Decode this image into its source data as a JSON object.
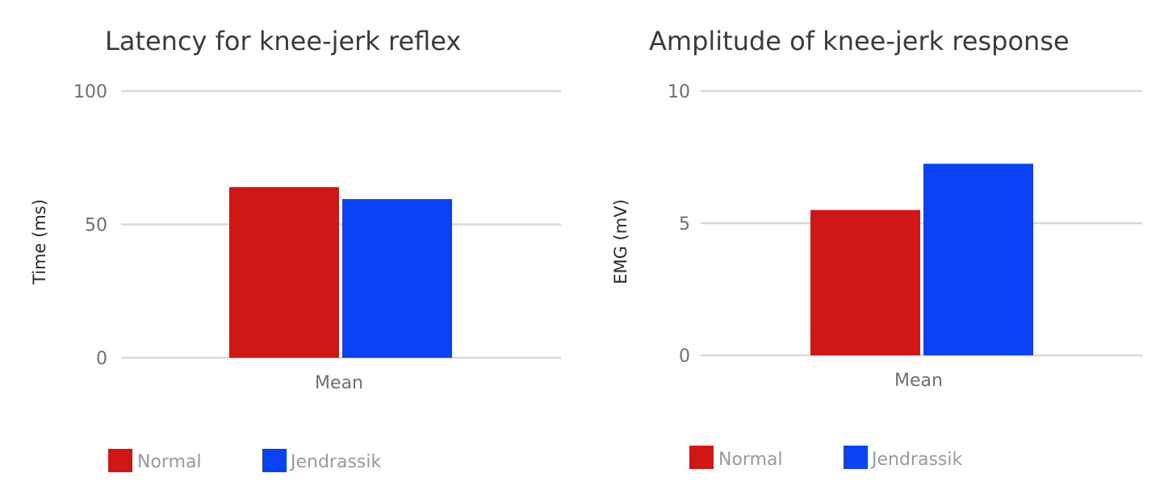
{
  "chart_data": [
    {
      "type": "bar",
      "title": "Latency for knee-jerk reflex",
      "xlabel": "",
      "ylabel": "Time (ms)",
      "ylim": [
        0,
        100
      ],
      "yticks": [
        "0",
        "50",
        "100"
      ],
      "categories": [
        "Mean"
      ],
      "series": [
        {
          "name": "Normal",
          "color": "#d01715",
          "values": [
            64
          ]
        },
        {
          "name": "Jendrassik",
          "color": "#0a42f5",
          "values": [
            59.5
          ]
        }
      ],
      "grid": true,
      "legend": "bottom-left"
    },
    {
      "type": "bar",
      "title": "Amplitude of knee-jerk response",
      "xlabel": "",
      "ylabel": "EMG (mV)",
      "ylim": [
        0,
        10
      ],
      "yticks": [
        "0",
        "5",
        "10"
      ],
      "categories": [
        "Mean"
      ],
      "series": [
        {
          "name": "Normal",
          "color": "#d01715",
          "values": [
            5.5
          ]
        },
        {
          "name": "Jendrassik",
          "color": "#0a42f5",
          "values": [
            7.25
          ]
        }
      ],
      "grid": true,
      "legend": "bottom-left"
    }
  ]
}
